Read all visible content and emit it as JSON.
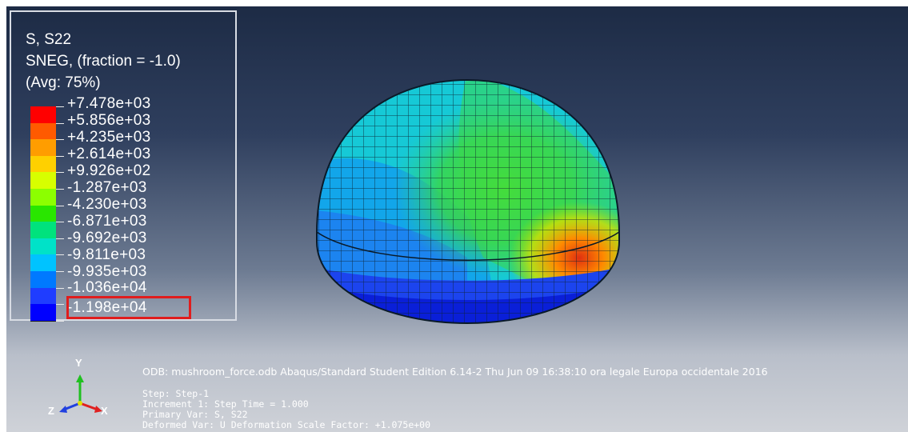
{
  "legend": {
    "title_line1": "S, S22",
    "title_line2": "SNEG, (fraction = -1.0)",
    "title_line3": "(Avg: 75%)",
    "values": [
      "+7.478e+03",
      "+5.856e+03",
      "+4.235e+03",
      "+2.614e+03",
      "+9.926e+02",
      "-1.287e+03",
      "-4.230e+03",
      "-6.871e+03",
      "-9.692e+03",
      "-9.811e+03",
      "-9.935e+03",
      "-1.036e+04",
      "-1.198e+04"
    ],
    "colors": [
      "#ff0000",
      "#ff5a00",
      "#ff9d00",
      "#ffd000",
      "#d7ff00",
      "#8cff00",
      "#29e600",
      "#00e27d",
      "#00e2c8",
      "#00c3ff",
      "#0079ff",
      "#1f3dff",
      "#0000ff"
    ]
  },
  "info": {
    "odb_line": "ODB: mushroom_force.odb    Abaqus/Standard Student Edition 6.14-2    Thu Jun 09 16:38:10 ora legale Europa occidentale 2016",
    "step_line": "Step: Step-1",
    "increment_line": "Increment      1: Step Time =    1.000",
    "primary_var_line": "Primary Var: S, S22",
    "deformed_var_line": "Deformed Var: U   Deformation Scale Factor: +1.075e+00"
  },
  "triad": {
    "x_label": "X",
    "y_label": "Y",
    "z_label": "Z"
  }
}
